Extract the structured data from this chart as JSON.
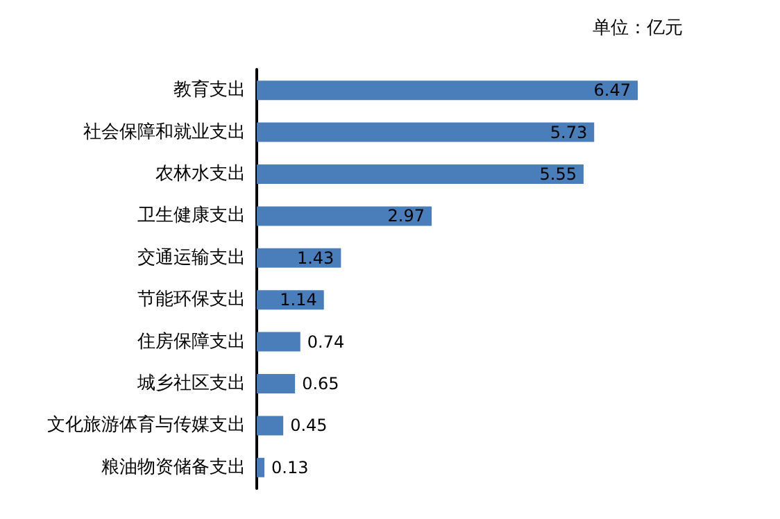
{
  "chart_data": {
    "type": "bar",
    "orientation": "horizontal",
    "annotations": [
      "单位：亿元"
    ],
    "categories": [
      "教育支出",
      "社会保障和就业支出",
      "农林水支出",
      "卫生健康支出",
      "交通运输支出",
      "节能环保支出",
      "住房保障支出",
      "城乡社区支出",
      "文化旅游体育与传媒支出",
      "粮油物资储备支出"
    ],
    "values": [
      6.47,
      5.73,
      5.55,
      2.97,
      1.43,
      1.14,
      0.74,
      0.65,
      0.45,
      0.13
    ],
    "color": "#4a7ebb",
    "data_labels": true
  }
}
